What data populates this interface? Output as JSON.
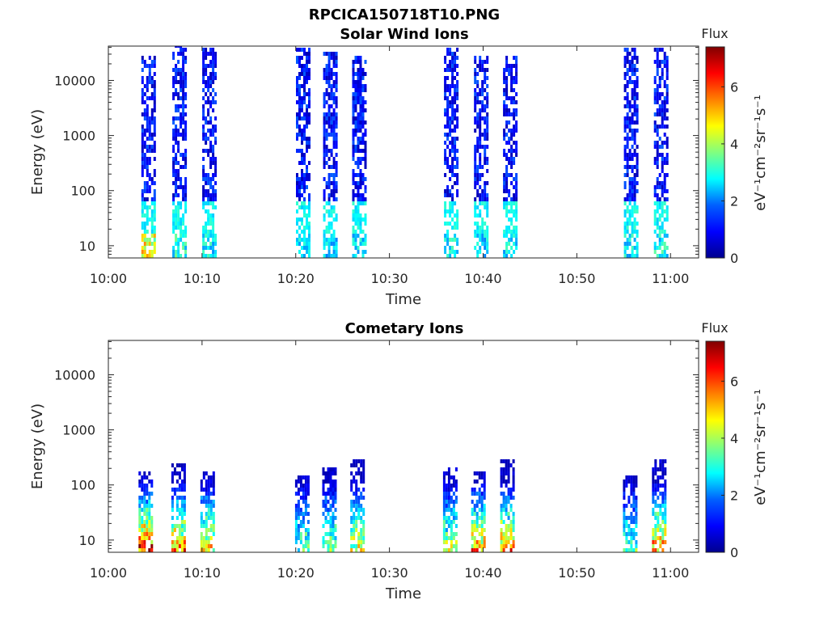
{
  "figure": {
    "title": "RPCICA150718T10.PNG"
  },
  "colors": {
    "colormap": [
      "#00008f",
      "#0000ff",
      "#0080ff",
      "#00ffff",
      "#80ff80",
      "#ffff00",
      "#ff8000",
      "#ff0000",
      "#800000"
    ],
    "axis": "#262626"
  },
  "chart_data": [
    {
      "type": "heatmap",
      "title": "Solar Wind Ions",
      "xlabel": "Time",
      "ylabel": "Energy (eV)",
      "x_ticks": [
        "10:00",
        "10:10",
        "10:20",
        "10:30",
        "10:40",
        "10:50",
        "11:00"
      ],
      "x_tick_minutes": [
        0,
        10,
        20,
        30,
        40,
        50,
        60
      ],
      "x_range_minutes": [
        0,
        63
      ],
      "y_scale": "log",
      "y_range": [
        6,
        42000
      ],
      "y_ticks": [
        "10",
        "100",
        "1000",
        "10000"
      ],
      "y_tick_values": [
        10,
        100,
        1000,
        10000
      ],
      "colorbar": {
        "label": "Flux",
        "unit": "eV⁻¹cm⁻²sr⁻¹s⁻¹",
        "range": [
          0,
          7.4
        ],
        "ticks": [
          0,
          2,
          4,
          6
        ]
      },
      "bursts": [
        {
          "t": 4.3,
          "emax": 25000,
          "low_flux": 4.6
        },
        {
          "t": 7.6,
          "emax": 40000,
          "low_flux": 3.0
        },
        {
          "t": 10.8,
          "emax": 35000,
          "low_flux": 2.8
        },
        {
          "t": 20.8,
          "emax": 38000,
          "low_flux": 2.6
        },
        {
          "t": 23.7,
          "emax": 30000,
          "low_flux": 2.6
        },
        {
          "t": 26.8,
          "emax": 25000,
          "low_flux": 2.7
        },
        {
          "t": 36.6,
          "emax": 38000,
          "low_flux": 2.8
        },
        {
          "t": 39.8,
          "emax": 25000,
          "low_flux": 2.6
        },
        {
          "t": 42.9,
          "emax": 25000,
          "low_flux": 2.8
        },
        {
          "t": 55.8,
          "emax": 35000,
          "low_flux": 2.8
        },
        {
          "t": 59.0,
          "emax": 35000,
          "low_flux": 2.9
        }
      ]
    },
    {
      "type": "heatmap",
      "title": "Cometary Ions",
      "xlabel": "Time",
      "ylabel": "Energy (eV)",
      "x_ticks": [
        "10:00",
        "10:10",
        "10:20",
        "10:30",
        "10:40",
        "10:50",
        "11:00"
      ],
      "x_tick_minutes": [
        0,
        10,
        20,
        30,
        40,
        50,
        60
      ],
      "x_range_minutes": [
        0,
        63
      ],
      "y_scale": "log",
      "y_range": [
        6,
        42000
      ],
      "y_ticks": [
        "10",
        "100",
        "1000",
        "10000"
      ],
      "y_tick_values": [
        10,
        100,
        1000,
        10000
      ],
      "colorbar": {
        "label": "Flux",
        "unit": "eV⁻¹cm⁻²sr⁻¹s⁻¹",
        "range": [
          0,
          7.4
        ],
        "ticks": [
          0,
          2,
          4,
          6
        ]
      },
      "bursts": [
        {
          "t": 4.0,
          "emax": 150,
          "peak_flux": 7.2
        },
        {
          "t": 7.5,
          "emax": 220,
          "peak_flux": 6.3
        },
        {
          "t": 10.6,
          "emax": 150,
          "peak_flux": 5.6
        },
        {
          "t": 20.7,
          "emax": 140,
          "peak_flux": 3.8
        },
        {
          "t": 23.6,
          "emax": 200,
          "peak_flux": 4.2
        },
        {
          "t": 26.6,
          "emax": 250,
          "peak_flux": 5.2
        },
        {
          "t": 36.5,
          "emax": 200,
          "peak_flux": 4.6
        },
        {
          "t": 39.5,
          "emax": 190,
          "peak_flux": 6.0
        },
        {
          "t": 42.6,
          "emax": 260,
          "peak_flux": 6.1
        },
        {
          "t": 55.7,
          "emax": 140,
          "peak_flux": 3.6
        },
        {
          "t": 58.8,
          "emax": 280,
          "peak_flux": 6.3
        }
      ]
    }
  ]
}
